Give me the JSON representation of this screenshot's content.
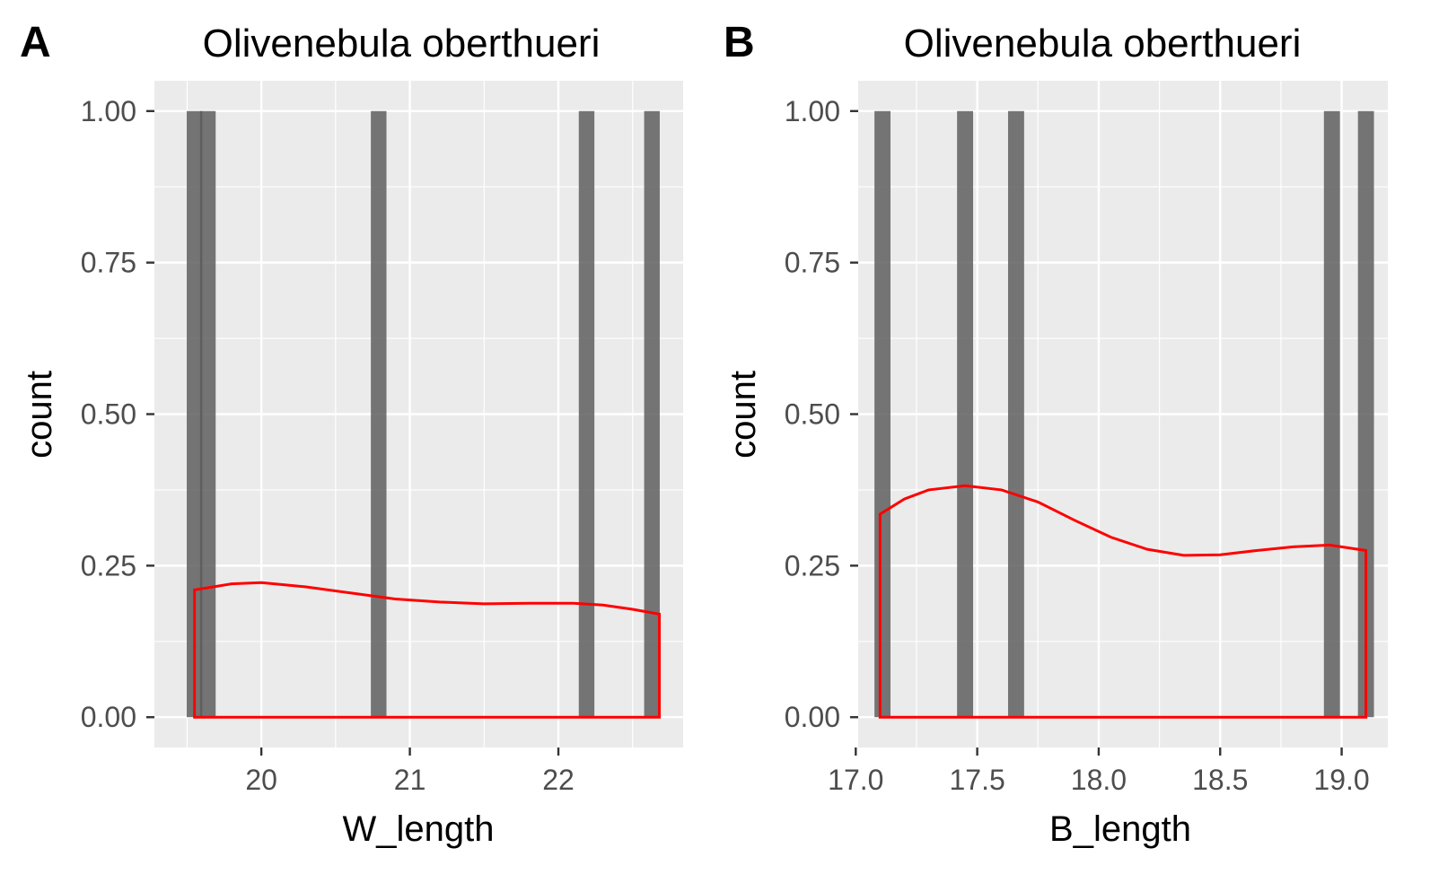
{
  "chart_data": [
    {
      "panel_tag": "A",
      "type": "bar",
      "title": "Olivenebula oberthueri",
      "xlabel": "W_length",
      "ylabel": "count",
      "xlim": [
        19.28,
        22.84
      ],
      "ylim": [
        -0.05,
        1.05
      ],
      "x_ticks": [
        20,
        21,
        22
      ],
      "x_tick_labels": [
        "20",
        "21",
        "22"
      ],
      "x_minor": [
        19.5,
        20.5,
        21.5,
        22.5
      ],
      "y_ticks": [
        0,
        0.25,
        0.5,
        0.75,
        1.0
      ],
      "y_tick_labels": [
        "0.00",
        "0.25",
        "0.50",
        "0.75",
        "1.00"
      ],
      "y_minor": [
        0.125,
        0.375,
        0.625,
        0.875
      ],
      "bar_width": 0.105,
      "bars": [
        {
          "x": 19.55,
          "count": 1
        },
        {
          "x": 19.64,
          "count": 1
        },
        {
          "x": 20.79,
          "count": 1
        },
        {
          "x": 22.19,
          "count": 1
        },
        {
          "x": 22.63,
          "count": 1
        }
      ],
      "density": {
        "color": "#ff0000",
        "x": [
          19.55,
          19.8,
          20.0,
          20.3,
          20.6,
          20.9,
          21.2,
          21.5,
          21.8,
          22.1,
          22.3,
          22.5,
          22.68
        ],
        "y": [
          0.21,
          0.22,
          0.222,
          0.215,
          0.205,
          0.195,
          0.19,
          0.187,
          0.188,
          0.188,
          0.185,
          0.178,
          0.17
        ]
      },
      "grid": true
    },
    {
      "panel_tag": "B",
      "type": "bar",
      "title": "Olivenebula oberthueri",
      "xlabel": "B_length",
      "ylabel": "count",
      "xlim": [
        17.01,
        19.19
      ],
      "ylim": [
        -0.05,
        1.05
      ],
      "x_ticks": [
        17.0,
        17.5,
        18.0,
        18.5,
        19.0
      ],
      "x_tick_labels": [
        "17.0",
        "17.5",
        "18.0",
        "18.5",
        "19.0"
      ],
      "x_minor": [
        17.25,
        17.75,
        18.25,
        18.75
      ],
      "y_ticks": [
        0,
        0.25,
        0.5,
        0.75,
        1.0
      ],
      "y_tick_labels": [
        "0.00",
        "0.25",
        "0.50",
        "0.75",
        "1.00"
      ],
      "y_minor": [
        0.125,
        0.375,
        0.625,
        0.875
      ],
      "bar_width": 0.066,
      "bars": [
        {
          "x": 17.11,
          "count": 1
        },
        {
          "x": 17.45,
          "count": 1
        },
        {
          "x": 17.66,
          "count": 1
        },
        {
          "x": 18.96,
          "count": 1
        },
        {
          "x": 19.1,
          "count": 1
        }
      ],
      "density": {
        "color": "#ff0000",
        "x": [
          17.1,
          17.2,
          17.3,
          17.45,
          17.6,
          17.75,
          17.9,
          18.05,
          18.2,
          18.35,
          18.5,
          18.65,
          18.8,
          18.95,
          19.1
        ],
        "y": [
          0.335,
          0.36,
          0.375,
          0.382,
          0.375,
          0.355,
          0.325,
          0.297,
          0.277,
          0.267,
          0.268,
          0.275,
          0.281,
          0.284,
          0.275
        ]
      },
      "grid": true
    }
  ]
}
